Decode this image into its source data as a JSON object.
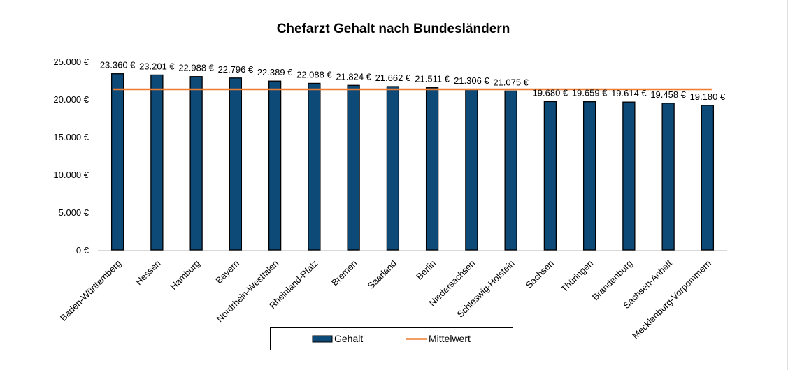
{
  "chart_data": {
    "type": "bar",
    "title": "Chefarzt Gehalt nach Bundesländern",
    "categories": [
      "Baden-Württemberg",
      "Hessen",
      "Hamburg",
      "Bayern",
      "Nordrhein-Westfalen",
      "Rheinland-Pfalz",
      "Bremen",
      "Saarland",
      "Berlin",
      "Niedersachsen",
      "Schleswig-Holstein",
      "Sachsen",
      "Thüringen",
      "Brandenburg",
      "Sachsen-Anhalt",
      "Mecklenburg-Vorpommern"
    ],
    "series": [
      {
        "name": "Gehalt",
        "type": "bar",
        "color": "#0d4a78",
        "values": [
          23360,
          23201,
          22988,
          22796,
          22389,
          22088,
          21824,
          21662,
          21511,
          21306,
          21075,
          19680,
          19659,
          19614,
          19458,
          19180
        ],
        "labels": [
          "23.360 €",
          "23.201 €",
          "22.988 €",
          "22.796 €",
          "22.389 €",
          "22.088 €",
          "21.824 €",
          "21.662 €",
          "21.511 €",
          "21.306 €",
          "21.075 €",
          "19.680 €",
          "19.659 €",
          "19.614 €",
          "19.458 €",
          "19.180 €"
        ]
      },
      {
        "name": "Mittelwert",
        "type": "line",
        "color": "#ed7d31",
        "value": 21298
      }
    ],
    "ylim": [
      0,
      25000
    ],
    "yticks": [
      0,
      5000,
      10000,
      15000,
      20000,
      25000
    ],
    "ytick_labels": [
      "0 €",
      "5.000 €",
      "10.000 €",
      "15.000 €",
      "20.000 €",
      "25.000 €"
    ],
    "legend_position": "bottom",
    "grid": false
  }
}
